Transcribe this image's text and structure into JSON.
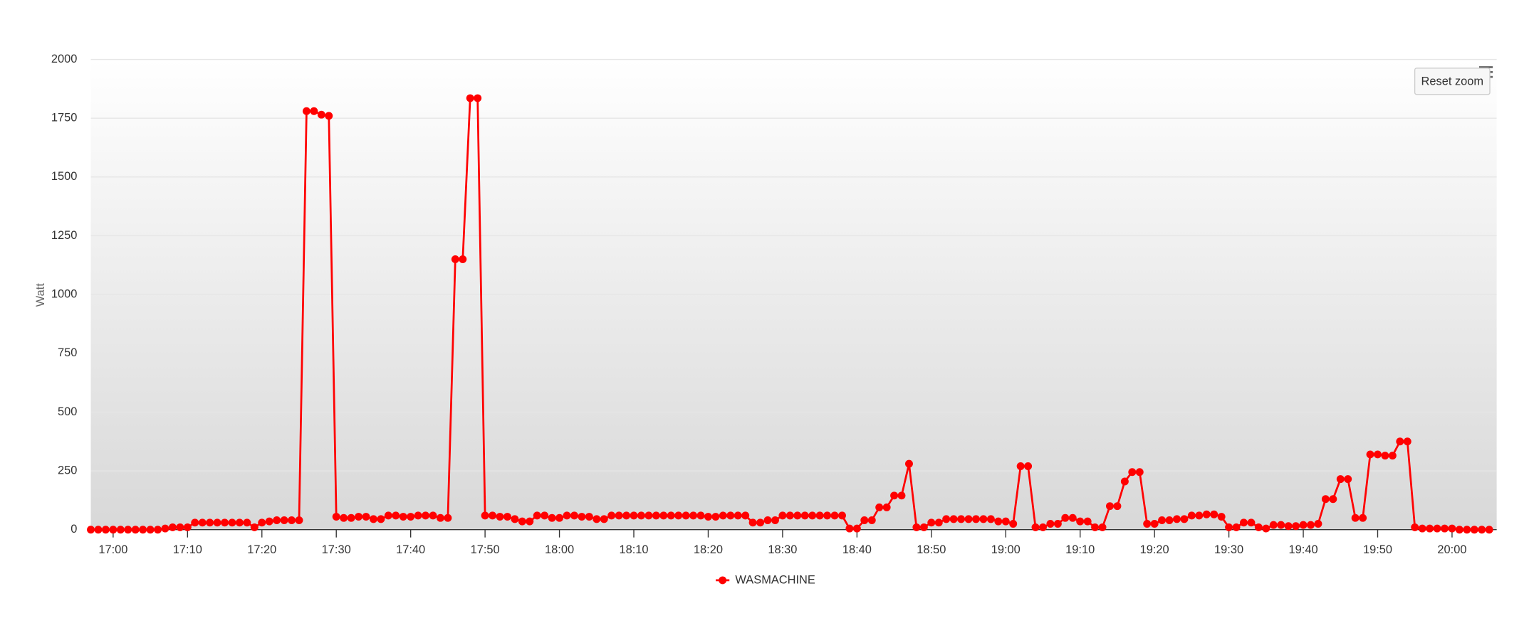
{
  "chart_data": {
    "type": "line",
    "y_label": "Watt",
    "x": [
      "16:57",
      "16:58",
      "16:59",
      "17:00",
      "17:01",
      "17:02",
      "17:03",
      "17:04",
      "17:05",
      "17:06",
      "17:07",
      "17:08",
      "17:09",
      "17:10",
      "17:11",
      "17:12",
      "17:13",
      "17:14",
      "17:15",
      "17:16",
      "17:17",
      "17:18",
      "17:19",
      "17:20",
      "17:21",
      "17:22",
      "17:23",
      "17:24",
      "17:25",
      "17:26",
      "17:27",
      "17:28",
      "17:29",
      "17:30",
      "17:31",
      "17:32",
      "17:33",
      "17:34",
      "17:35",
      "17:36",
      "17:37",
      "17:38",
      "17:39",
      "17:40",
      "17:41",
      "17:42",
      "17:43",
      "17:44",
      "17:45",
      "17:46",
      "17:47",
      "17:48",
      "17:49",
      "17:50",
      "17:51",
      "17:52",
      "17:53",
      "17:54",
      "17:55",
      "17:56",
      "17:57",
      "17:58",
      "17:59",
      "18:00",
      "18:01",
      "18:02",
      "18:03",
      "18:04",
      "18:05",
      "18:06",
      "18:07",
      "18:08",
      "18:09",
      "18:10",
      "18:11",
      "18:12",
      "18:13",
      "18:14",
      "18:15",
      "18:16",
      "18:17",
      "18:18",
      "18:19",
      "18:20",
      "18:21",
      "18:22",
      "18:23",
      "18:24",
      "18:25",
      "18:26",
      "18:27",
      "18:28",
      "18:29",
      "18:30",
      "18:31",
      "18:32",
      "18:33",
      "18:34",
      "18:35",
      "18:36",
      "18:37",
      "18:38",
      "18:39",
      "18:40",
      "18:41",
      "18:42",
      "18:43",
      "18:44",
      "18:45",
      "18:46",
      "18:47",
      "18:48",
      "18:49",
      "18:50",
      "18:51",
      "18:52",
      "18:53",
      "18:54",
      "18:55",
      "18:56",
      "18:57",
      "18:58",
      "18:59",
      "19:00",
      "19:01",
      "19:02",
      "19:03",
      "19:04",
      "19:05",
      "19:06",
      "19:07",
      "19:08",
      "19:09",
      "19:10",
      "19:11",
      "19:12",
      "19:13",
      "19:14",
      "19:15",
      "19:16",
      "19:17",
      "19:18",
      "19:19",
      "19:20",
      "19:21",
      "19:22",
      "19:23",
      "19:24",
      "19:25",
      "19:26",
      "19:27",
      "19:28",
      "19:29",
      "19:30",
      "19:31",
      "19:32",
      "19:33",
      "19:34",
      "19:35",
      "19:36",
      "19:37",
      "19:38",
      "19:39",
      "19:40",
      "19:41",
      "19:42",
      "19:43",
      "19:44",
      "19:45",
      "19:46",
      "19:47",
      "19:48",
      "19:49",
      "19:50",
      "19:51",
      "19:52",
      "19:53",
      "19:54",
      "19:55",
      "19:56",
      "19:57",
      "19:58",
      "19:59",
      "20:00",
      "20:01",
      "20:02",
      "20:03",
      "20:04",
      "20:05"
    ],
    "series": [
      {
        "name": "WASMACHINE",
        "color": "#ff0000",
        "values": [
          0,
          0,
          0,
          0,
          0,
          0,
          0,
          0,
          0,
          0,
          5,
          10,
          10,
          10,
          30,
          30,
          30,
          30,
          30,
          30,
          30,
          30,
          10,
          30,
          35,
          40,
          40,
          40,
          40,
          1780,
          1780,
          1765,
          1760,
          55,
          50,
          50,
          55,
          55,
          45,
          45,
          60,
          60,
          55,
          55,
          60,
          60,
          60,
          50,
          50,
          1150,
          1150,
          1835,
          1835,
          60,
          60,
          55,
          55,
          45,
          35,
          35,
          60,
          60,
          50,
          50,
          60,
          60,
          55,
          55,
          45,
          45,
          60,
          60,
          60,
          60,
          60,
          60,
          60,
          60,
          60,
          60,
          60,
          60,
          60,
          55,
          55,
          60,
          60,
          60,
          60,
          30,
          30,
          40,
          40,
          60,
          60,
          60,
          60,
          60,
          60,
          60,
          60,
          60,
          5,
          5,
          40,
          40,
          95,
          95,
          145,
          145,
          280,
          10,
          10,
          30,
          30,
          45,
          45,
          45,
          45,
          45,
          45,
          45,
          35,
          35,
          25,
          270,
          270,
          10,
          10,
          25,
          25,
          50,
          50,
          35,
          35,
          10,
          10,
          100,
          100,
          205,
          245,
          245,
          25,
          25,
          40,
          40,
          45,
          45,
          60,
          60,
          65,
          65,
          55,
          10,
          10,
          30,
          30,
          10,
          5,
          20,
          20,
          15,
          15,
          20,
          20,
          25,
          130,
          130,
          215,
          215,
          50,
          50,
          320,
          320,
          315,
          315,
          375,
          375,
          10,
          5,
          5,
          5,
          5,
          5,
          0,
          0,
          0,
          0,
          0
        ]
      }
    ],
    "xlim": [
      "16:57",
      "20:06"
    ],
    "ylim": [
      0,
      2000
    ],
    "xticks": [
      "17:00",
      "17:10",
      "17:20",
      "17:30",
      "17:40",
      "17:50",
      "18:00",
      "18:10",
      "18:20",
      "18:30",
      "18:40",
      "18:50",
      "19:00",
      "19:10",
      "19:20",
      "19:30",
      "19:40",
      "19:50",
      "20:00"
    ],
    "yticks": [
      0,
      250,
      500,
      750,
      1000,
      1250,
      1500,
      1750,
      2000
    ],
    "grid": true,
    "legend": "bottom"
  },
  "reset_zoom_button": "Reset zoom"
}
